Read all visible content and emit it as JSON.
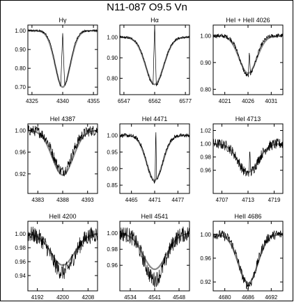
{
  "figure": {
    "title": "N11-087   O9.5 Vn"
  },
  "chart_data": [
    {
      "type": "line",
      "title": "Hγ",
      "ylim": [
        0.66,
        1.03
      ],
      "xlim": [
        4323,
        4357
      ],
      "xticks": [
        4325,
        4340,
        4355
      ],
      "yticks": [
        0.7,
        0.8,
        0.9,
        1.0
      ],
      "yticklabels": [
        "0.70",
        "0.80",
        "0.90",
        "1.00"
      ],
      "center": 4340,
      "depth": 0.31,
      "width": 3.5,
      "model_center": 4340,
      "model_depth": 0.3,
      "model_width": 3.7,
      "noise": 0.006,
      "spike": {
        "at": 4340,
        "height": 0.3,
        "halfwidth": 0.5
      }
    },
    {
      "type": "line",
      "title": "Hα",
      "ylim": [
        0.72,
        1.06
      ],
      "xlim": [
        6545,
        6579
      ],
      "xticks": [
        6547,
        6562,
        6577
      ],
      "yticks": [
        0.8,
        0.9,
        1.0
      ],
      "yticklabels": [
        "0.80",
        "0.90",
        "1.00"
      ],
      "center": 6562,
      "depth": 0.24,
      "width": 4.2,
      "model_center": 6562,
      "model_depth": 0.23,
      "model_width": 4.4,
      "noise": 0.006,
      "spike": {
        "at": 6562,
        "height": 0.3,
        "halfwidth": 0.4
      }
    },
    {
      "type": "line",
      "title": "HeI + HeII 4026",
      "ylim": [
        0.78,
        1.04
      ],
      "xlim": [
        4018.5,
        4033.5
      ],
      "xticks": [
        4021,
        4026,
        4031
      ],
      "yticks": [
        0.8,
        0.9,
        1.0
      ],
      "yticklabels": [
        "0.80",
        "0.90",
        "1.00"
      ],
      "center": 4026,
      "depth": 0.15,
      "width": 1.7,
      "model_center": 4026,
      "model_depth": 0.14,
      "model_width": 1.9,
      "noise": 0.008,
      "spike": {
        "at": 4026.3,
        "height": 0.09,
        "halfwidth": 0.12
      }
    },
    {
      "type": "line",
      "title": "HeI 4387",
      "ylim": [
        0.884,
        1.012
      ],
      "xlim": [
        4381,
        4395
      ],
      "xticks": [
        4383,
        4388,
        4393
      ],
      "yticks": [
        0.92,
        0.96,
        1.0
      ],
      "yticklabels": [
        "0.92",
        "0.96",
        "1.00"
      ],
      "center": 4388,
      "depth": 0.075,
      "width": 1.9,
      "model_center": 4388,
      "model_depth": 0.082,
      "model_width": 2.1,
      "noise": 0.01
    },
    {
      "type": "line",
      "title": "HeI 4471",
      "ylim": [
        0.825,
        1.035
      ],
      "xlim": [
        4462,
        4480
      ],
      "xticks": [
        4465,
        4471,
        4477
      ],
      "yticks": [
        0.85,
        0.9,
        0.95,
        1.0
      ],
      "yticklabels": [
        "0.85",
        "0.90",
        "0.95",
        "1.00"
      ],
      "center": 4471,
      "depth": 0.14,
      "width": 2.0,
      "model_center": 4471,
      "model_depth": 0.135,
      "model_width": 2.1,
      "noise": 0.006,
      "spike": {
        "at": 4471.3,
        "height": 0.17,
        "halfwidth": 0.1
      }
    },
    {
      "type": "line",
      "title": "HeI 4713",
      "ylim": [
        0.925,
        1.03
      ],
      "xlim": [
        4705,
        4721
      ],
      "xticks": [
        4707,
        4713,
        4719
      ],
      "yticks": [
        0.96,
        0.98,
        1.0,
        1.02
      ],
      "yticklabels": [
        "0.96",
        "0.98",
        "1.00",
        "1.02"
      ],
      "center": 4713,
      "depth": 0.045,
      "width": 2.2,
      "model_center": 4713,
      "model_depth": 0.043,
      "model_width": 2.3,
      "noise": 0.008,
      "spike": {
        "at": 4713.4,
        "height": 0.03,
        "halfwidth": 0.12
      }
    },
    {
      "type": "line",
      "title": "HeII 4200",
      "ylim": [
        0.918,
        1.018
      ],
      "xlim": [
        4189,
        4211
      ],
      "xticks": [
        4192,
        4200,
        4208
      ],
      "yticks": [
        0.94,
        0.96,
        0.98,
        1.0
      ],
      "yticklabels": [
        "0.94",
        "0.96",
        "0.98",
        "1.00"
      ],
      "center": 4200,
      "depth": 0.055,
      "width": 3.5,
      "model_center": 4200,
      "model_depth": 0.045,
      "model_width": 3.7,
      "noise": 0.012
    },
    {
      "type": "line",
      "title": "HeII 4541",
      "ylim": [
        0.928,
        1.015
      ],
      "xlim": [
        4531,
        4551
      ],
      "xticks": [
        4534,
        4541,
        4548
      ],
      "yticks": [
        0.96,
        0.98,
        1.0
      ],
      "yticklabels": [
        "0.96",
        "0.98",
        "1.00"
      ],
      "center": 4541,
      "depth": 0.058,
      "width": 3.0,
      "model_center": 4541,
      "model_depth": 0.045,
      "model_width": 3.3,
      "noise": 0.01
    },
    {
      "type": "line",
      "title": "HeII 4686",
      "ylim": [
        0.905,
        1.022
      ],
      "xlim": [
        4677,
        4695
      ],
      "xticks": [
        4680,
        4686,
        4692
      ],
      "yticks": [
        0.92,
        0.96,
        1.0
      ],
      "yticklabels": [
        "0.92",
        "0.96",
        "1.00"
      ],
      "center": 4686,
      "depth": 0.085,
      "width": 2.3,
      "model_center": 4686,
      "model_depth": 0.082,
      "model_width": 2.5,
      "noise": 0.008
    }
  ]
}
